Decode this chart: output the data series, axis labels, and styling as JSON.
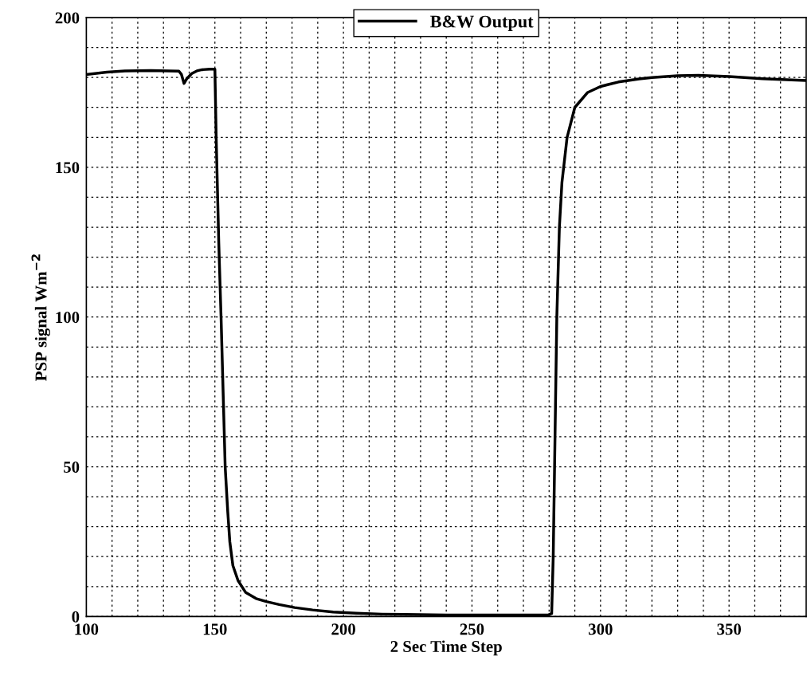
{
  "chart_data": {
    "type": "line",
    "xlabel": "2 Sec Time Step",
    "ylabel": "PSP signal Wm$^{−2}$",
    "x": [
      100,
      108,
      115,
      125,
      136,
      137,
      138,
      139,
      141,
      143,
      145,
      148,
      150,
      150.5,
      151.5,
      152.4,
      153.2,
      154,
      155,
      155.8,
      157,
      159,
      162,
      166,
      170,
      175,
      181,
      188,
      196,
      205,
      215,
      240,
      260,
      279.5,
      281,
      281.6,
      282.3,
      283,
      284,
      285,
      287,
      290,
      295,
      300,
      307,
      315,
      320,
      330,
      338,
      350,
      363,
      380
    ],
    "series": [
      {
        "name": "B&W Output",
        "color": "#000000",
        "values": [
          181,
          181.8,
          182.2,
          182.3,
          182.1,
          181,
          178,
          179.5,
          181.3,
          182.2,
          182.6,
          182.8,
          182.8,
          160,
          125,
          100,
          75,
          50,
          35,
          25,
          17,
          12,
          8,
          6,
          5,
          4,
          3,
          2.2,
          1.5,
          1.1,
          0.8,
          0.5,
          0.5,
          0.5,
          1,
          20,
          60,
          100,
          130,
          145,
          160,
          170,
          175,
          177,
          178.5,
          179.5,
          180,
          180.6,
          180.7,
          180.3,
          179.6,
          179
        ]
      }
    ],
    "xlim": [
      100,
      380
    ],
    "ylim": [
      0,
      200
    ],
    "xticks": [
      100,
      {
        "value": 110,
        "label": null
      },
      {
        "value": 120,
        "label": null
      },
      {
        "value": 130,
        "label": null
      },
      {
        "value": 140,
        "label": null
      },
      150,
      {
        "value": 160,
        "label": null
      },
      {
        "value": 170,
        "label": null
      },
      {
        "value": 180,
        "label": null
      },
      {
        "value": 190,
        "label": null
      },
      200,
      {
        "value": 210,
        "label": null
      },
      {
        "value": 220,
        "label": null
      },
      {
        "value": 230,
        "label": null
      },
      {
        "value": 240,
        "label": null
      },
      250,
      {
        "value": 260,
        "label": null
      },
      {
        "value": 270,
        "label": null
      },
      {
        "value": 280,
        "label": null
      },
      {
        "value": 290,
        "label": null
      },
      300,
      {
        "value": 310,
        "label": null
      },
      {
        "value": 320,
        "label": null
      },
      {
        "value": 330,
        "label": null
      },
      {
        "value": 340,
        "label": null
      },
      350,
      {
        "value": 360,
        "label": null
      },
      {
        "value": 370,
        "label": null
      }
    ],
    "yticks": [
      0,
      {
        "value": 10,
        "label": null
      },
      {
        "value": 20,
        "label": null
      },
      {
        "value": 30,
        "label": null
      },
      {
        "value": 40,
        "label": null
      },
      50,
      {
        "value": 60,
        "label": null
      },
      {
        "value": 70,
        "label": null
      },
      {
        "value": 80,
        "label": null
      },
      {
        "value": 90,
        "label": null
      },
      100,
      {
        "value": 110,
        "label": null
      },
      {
        "value": 120,
        "label": null
      },
      {
        "value": 130,
        "label": null
      },
      {
        "value": 140,
        "label": null
      },
      150,
      {
        "value": 160,
        "label": null
      },
      {
        "value": 170,
        "label": null
      },
      {
        "value": 180,
        "label": null
      },
      {
        "value": 190,
        "label": null
      },
      200
    ],
    "grid": true,
    "legend": "top",
    "marker": "none",
    "line_style": "solid"
  }
}
